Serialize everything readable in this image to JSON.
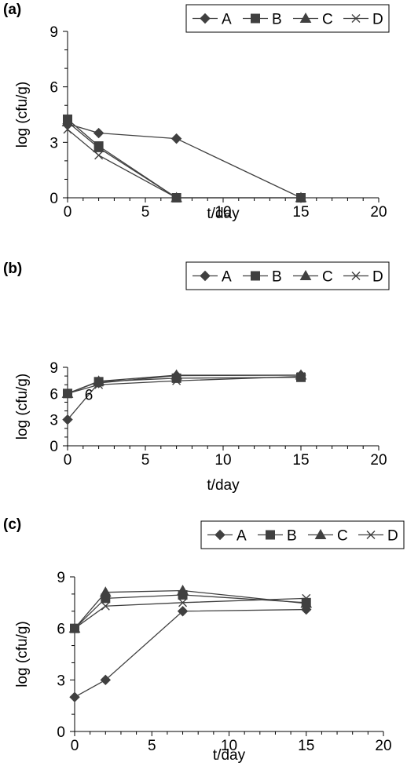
{
  "chart_data": [
    {
      "panel": "(a)",
      "type": "line",
      "xlabel": "t/day",
      "ylabel": "log (cfu/g)",
      "xlim": [
        0,
        20
      ],
      "ylim": [
        0,
        9
      ],
      "x_ticks": [
        "0",
        "5",
        "10",
        "15",
        "20"
      ],
      "y_ticks": [
        "0",
        "3",
        "6",
        "9"
      ],
      "grid": false,
      "legend": "top-right, boxed, horizontal",
      "annotations": [],
      "series": [
        {
          "name": "A",
          "marker": "diamond",
          "x": [
            0,
            2,
            7,
            15
          ],
          "y": [
            4.0,
            3.5,
            3.2,
            0
          ]
        },
        {
          "name": "B",
          "marker": "square",
          "x": [
            0,
            2,
            7,
            15
          ],
          "y": [
            4.25,
            2.8,
            0,
            0
          ]
        },
        {
          "name": "C",
          "marker": "triangle",
          "x": [
            0,
            2,
            7,
            15
          ],
          "y": [
            4.1,
            2.7,
            0,
            0
          ]
        },
        {
          "name": "D",
          "marker": "x",
          "x": [
            0,
            2,
            7,
            15
          ],
          "y": [
            3.7,
            2.3,
            0,
            0
          ]
        }
      ]
    },
    {
      "panel": "(b)",
      "type": "line",
      "xlabel": "t/day",
      "ylabel": "log (cfu/g)",
      "xlim": [
        0,
        20
      ],
      "ylim": [
        0,
        9
      ],
      "x_ticks": [
        "0",
        "5",
        "10",
        "15",
        "20"
      ],
      "y_ticks": [
        "0",
        "3",
        "6",
        "9"
      ],
      "grid": false,
      "legend": "top-right, boxed, horizontal",
      "annotations": [
        {
          "text": "6",
          "x": 1.1,
          "y": 6
        }
      ],
      "series": [
        {
          "name": "A",
          "marker": "diamond",
          "x": [
            0,
            2,
            7,
            15
          ],
          "y": [
            3.0,
            7.2,
            8.05,
            8.1
          ]
        },
        {
          "name": "B",
          "marker": "square",
          "x": [
            0,
            2,
            7,
            15
          ],
          "y": [
            6.0,
            7.35,
            7.75,
            7.85
          ]
        },
        {
          "name": "C",
          "marker": "triangle",
          "x": [
            0,
            2,
            7,
            15
          ],
          "y": [
            6.0,
            7.4,
            8.1,
            8.1
          ]
        },
        {
          "name": "D",
          "marker": "x",
          "x": [
            0,
            2,
            7,
            15
          ],
          "y": [
            6.0,
            7.0,
            7.45,
            7.95
          ]
        }
      ]
    },
    {
      "panel": "(c)",
      "type": "line",
      "xlabel": "t/day",
      "ylabel": "log (cfu/g)",
      "xlim": [
        0,
        20
      ],
      "ylim": [
        0,
        9
      ],
      "x_ticks": [
        "0",
        "5",
        "10",
        "15",
        "20"
      ],
      "y_ticks": [
        "0",
        "3",
        "6",
        "9"
      ],
      "grid": false,
      "legend": "top-right, boxed, horizontal",
      "annotations": [],
      "series": [
        {
          "name": "A",
          "marker": "diamond",
          "x": [
            0,
            2,
            7,
            15
          ],
          "y": [
            2.0,
            3.0,
            7.0,
            7.1
          ]
        },
        {
          "name": "B",
          "marker": "square",
          "x": [
            0,
            2,
            7,
            15
          ],
          "y": [
            6.0,
            7.75,
            7.95,
            7.5
          ]
        },
        {
          "name": "C",
          "marker": "triangle",
          "x": [
            0,
            2,
            7,
            15
          ],
          "y": [
            6.0,
            8.1,
            8.2,
            7.45
          ]
        },
        {
          "name": "D",
          "marker": "x",
          "x": [
            0,
            2,
            7,
            15
          ],
          "y": [
            6.0,
            7.3,
            7.5,
            7.75
          ]
        }
      ]
    }
  ]
}
